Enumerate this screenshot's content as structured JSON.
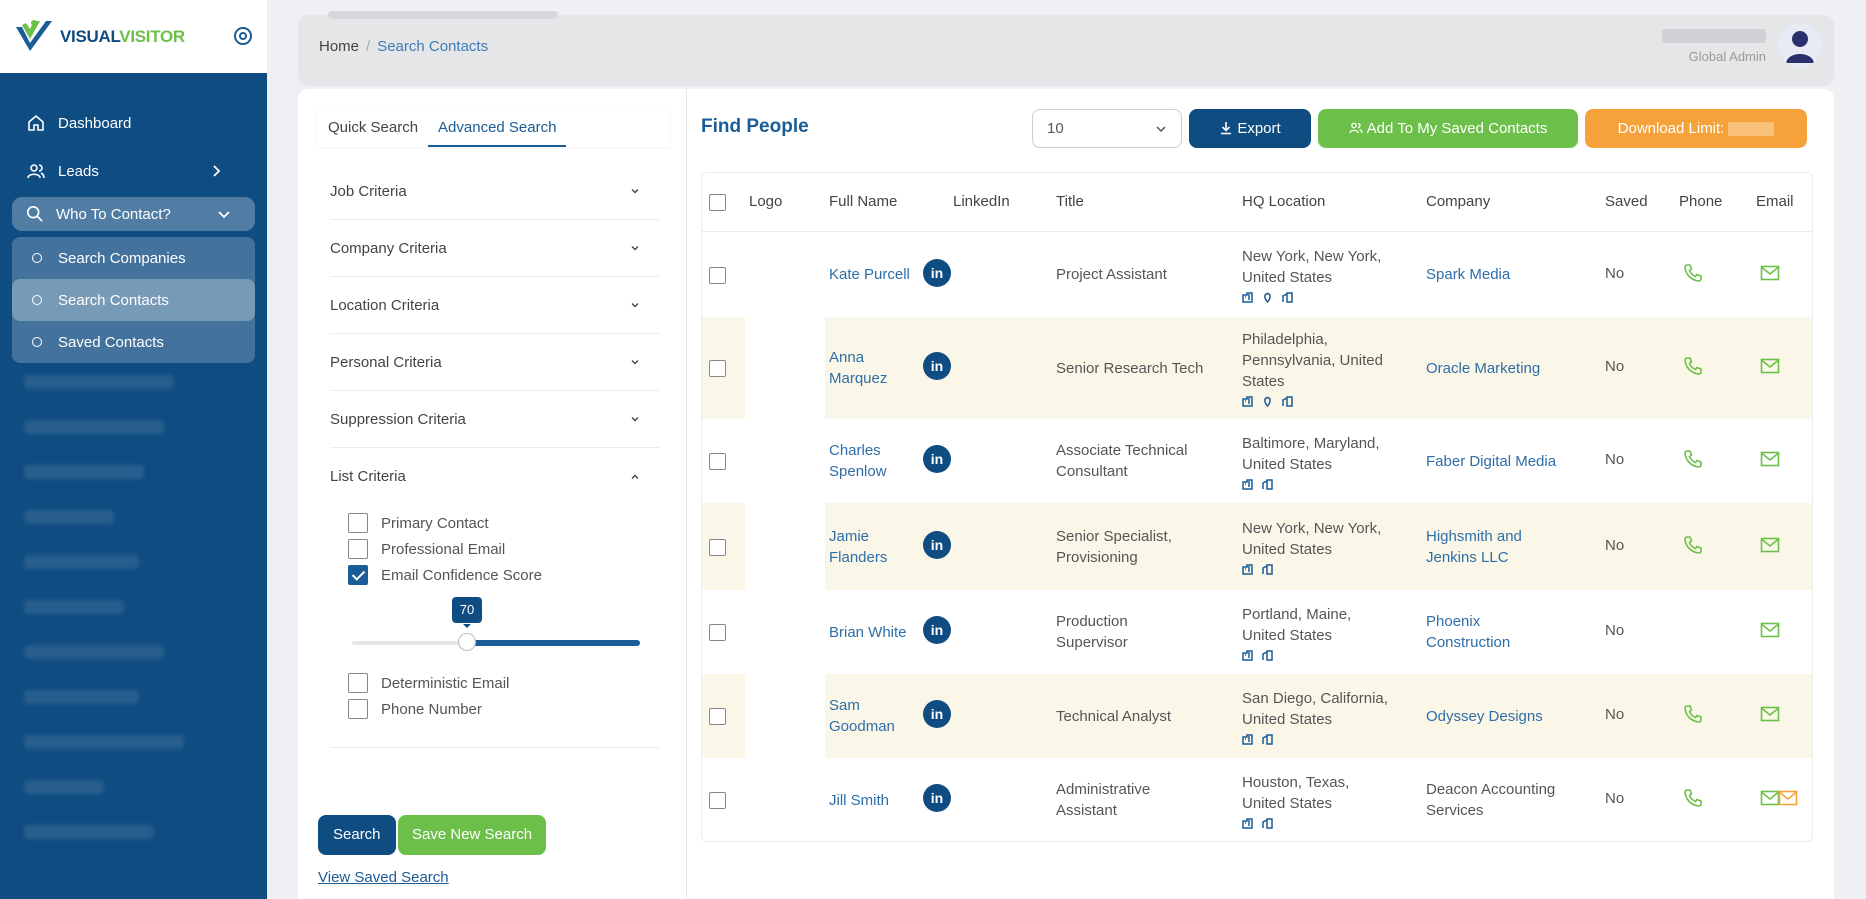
{
  "brand": {
    "name_part1": "VISUAL",
    "name_part2": "VISITOR"
  },
  "sidebar": {
    "items": [
      {
        "label": "Dashboard",
        "icon": "home-icon"
      },
      {
        "label": "Leads",
        "icon": "users-icon"
      },
      {
        "label": "Who To Contact?",
        "icon": "search-icon"
      }
    ],
    "subitems": [
      {
        "label": "Search Companies"
      },
      {
        "label": "Search Contacts"
      },
      {
        "label": "Saved Contacts"
      }
    ]
  },
  "header": {
    "breadcrumb_home": "Home",
    "breadcrumb_sep": "/",
    "breadcrumb_current": "Search Contacts",
    "user_role": "Global Admin"
  },
  "search_panel": {
    "tabs": [
      "Quick Search",
      "Advanced Search"
    ],
    "criteria": [
      "Job Criteria",
      "Company Criteria",
      "Location Criteria",
      "Personal Criteria",
      "Suppression Criteria",
      "List Criteria"
    ],
    "list_options": [
      {
        "label": "Primary Contact",
        "checked": false
      },
      {
        "label": "Professional Email",
        "checked": false
      },
      {
        "label": "Email Confidence Score",
        "checked": true
      },
      {
        "label": "Deterministic Email",
        "checked": false
      },
      {
        "label": "Phone Number",
        "checked": false
      }
    ],
    "confidence_score": 70,
    "confidence_fraction": 0.4,
    "search_label": "Search",
    "save_label": "Save New Search",
    "view_saved_label": "View Saved Search"
  },
  "results": {
    "title": "Find People",
    "page_size": "10",
    "export_label": "Export",
    "add_label": "Add To My Saved Contacts",
    "limit_label": "Download Limit:",
    "columns": [
      "Logo",
      "Full Name",
      "LinkedIn",
      "Title",
      "HQ Location",
      "Company",
      "Saved",
      "Phone",
      "Email"
    ],
    "rows": [
      {
        "name": [
          "Kate Purcell"
        ],
        "title": [
          "Project Assistant"
        ],
        "hq": [
          "New York, New York,",
          "United States"
        ],
        "hq_icons": 3,
        "company": [
          "Spark Media"
        ],
        "company_link": true,
        "saved": "No",
        "phone": true
      },
      {
        "name": [
          "Anna",
          "Marquez"
        ],
        "title": [
          "Senior Research Tech"
        ],
        "hq": [
          "Philadelphia,",
          "Pennsylvania, United",
          "States"
        ],
        "hq_icons": 3,
        "company": [
          "Oracle Marketing"
        ],
        "company_link": true,
        "saved": "No",
        "phone": true
      },
      {
        "name": [
          "Charles",
          "Spenlow"
        ],
        "title": [
          "Associate Technical",
          "Consultant"
        ],
        "hq": [
          "Baltimore, Maryland,",
          "United States"
        ],
        "hq_icons": 2,
        "company": [
          "Faber Digital Media"
        ],
        "company_link": true,
        "saved": "No",
        "phone": true
      },
      {
        "name": [
          "Jamie",
          "Flanders"
        ],
        "title": [
          "Senior Specialist,",
          "Provisioning"
        ],
        "hq": [
          "New York, New York,",
          "United States"
        ],
        "hq_icons": 2,
        "company": [
          "Highsmith and",
          "Jenkins LLC"
        ],
        "company_link": true,
        "saved": "No",
        "phone": true
      },
      {
        "name": [
          "Brian White"
        ],
        "title": [
          "Production",
          "Supervisor"
        ],
        "hq": [
          "Portland, Maine,",
          "United States"
        ],
        "hq_icons": 2,
        "company": [
          "Phoenix",
          "Construction"
        ],
        "company_link": true,
        "saved": "No",
        "phone": false
      },
      {
        "name": [
          "Sam",
          "Goodman"
        ],
        "title": [
          "Technical Analyst"
        ],
        "hq": [
          "San Diego, California,",
          "United States"
        ],
        "hq_icons": 2,
        "company": [
          "Odyssey Designs"
        ],
        "company_link": true,
        "saved": "No",
        "phone": true
      },
      {
        "name": [
          "Jill Smith"
        ],
        "title": [
          "Administrative",
          "Assistant"
        ],
        "hq": [
          "Houston, Texas,",
          "United States"
        ],
        "hq_icons": 2,
        "company": [
          "Deacon Accounting",
          "Services"
        ],
        "company_link": false,
        "saved": "No",
        "phone": true
      }
    ]
  },
  "colors": {
    "primary": "#0f4c81",
    "green": "#6cc04a",
    "orange": "#f6a23b",
    "link": "#2e6ea8"
  }
}
